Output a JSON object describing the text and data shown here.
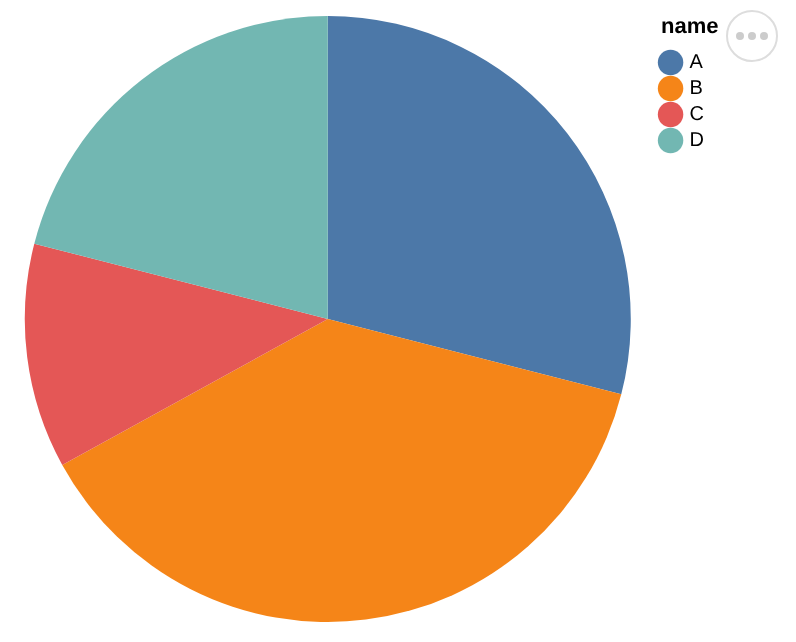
{
  "chart_data": {
    "type": "pie",
    "legend_title": "name",
    "categories": [
      "A",
      "B",
      "C",
      "D"
    ],
    "values": [
      29,
      38,
      12,
      21
    ],
    "colors": [
      "#4c78a8",
      "#f58518",
      "#e45756",
      "#72b7b2"
    ],
    "legend": "top right"
  }
}
